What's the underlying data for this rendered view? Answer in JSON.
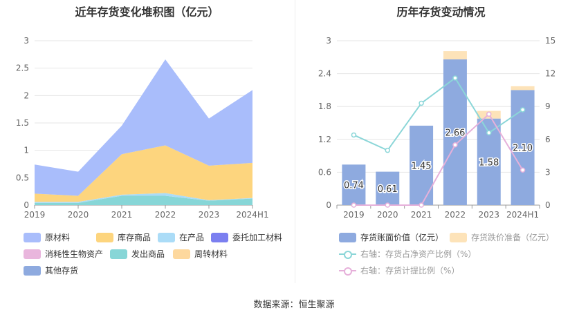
{
  "left_chart": {
    "title": "近年存货变化堆积图（亿元）"
  },
  "right_chart": {
    "title": "历年存货变动情况"
  },
  "footer": "数据来源：恒生聚源",
  "colors": {
    "raw": "#a9bdfb",
    "inventory_goods": "#fdd57e",
    "wip": "#abdcf7",
    "consign": "#7b7ff0",
    "bio": "#e9b6dd",
    "shipped": "#87d6d7",
    "revolving": "#fdd89e",
    "other": "#8eaadf",
    "book_value": "#8eaadf",
    "impairment": "#fde3b9",
    "ratio_line": "#8bd6d8",
    "provision_line": "#e6b0da"
  },
  "chart_data": [
    {
      "type": "area",
      "title": "近年存货变化堆积图（亿元）",
      "categories": [
        "2019",
        "2020",
        "2021",
        "2022",
        "2023",
        "2024H1"
      ],
      "ylim": [
        0,
        3
      ],
      "yticks": [
        "0",
        "0.5",
        "1",
        "1.5",
        "2",
        "2.5",
        "3"
      ],
      "stacked": true,
      "series": [
        {
          "name": "发出商品",
          "key": "shipped",
          "values": [
            0.04,
            0.04,
            0.17,
            0.17,
            0.08,
            0.12
          ]
        },
        {
          "name": "在产品",
          "key": "wip",
          "values": [
            0.02,
            0.02,
            0.02,
            0.05,
            0.01,
            0.01
          ]
        },
        {
          "name": "库存商品",
          "key": "inventory_goods",
          "values": [
            0.15,
            0.11,
            0.74,
            0.87,
            0.63,
            0.64
          ]
        },
        {
          "name": "原材料",
          "key": "raw",
          "values": [
            0.53,
            0.44,
            0.52,
            1.57,
            0.86,
            1.33
          ]
        }
      ],
      "legend": [
        {
          "name": "原材料",
          "key": "raw"
        },
        {
          "name": "库存商品",
          "key": "inventory_goods"
        },
        {
          "name": "在产品",
          "key": "wip"
        },
        {
          "name": "委托加工材料",
          "key": "consign"
        },
        {
          "name": "消耗性生物资产",
          "key": "bio"
        },
        {
          "name": "发出商品",
          "key": "shipped"
        },
        {
          "name": "周转材料",
          "key": "revolving"
        },
        {
          "name": "其他存货",
          "key": "other"
        }
      ]
    },
    {
      "type": "bar",
      "title": "历年存货变动情况",
      "categories": [
        "2019",
        "2020",
        "2021",
        "2022",
        "2023",
        "2024H1"
      ],
      "ylim": [
        0,
        3
      ],
      "yticks": [
        "0",
        "0.6",
        "1.2",
        "1.8",
        "2.4",
        "3"
      ],
      "y2lim": [
        0,
        15
      ],
      "y2ticks": [
        "0",
        "3",
        "6",
        "9",
        "12",
        "15"
      ],
      "series": [
        {
          "name": "存货账面价值（亿元）",
          "key": "book_value",
          "values": [
            0.74,
            0.61,
            1.45,
            2.66,
            1.58,
            2.1
          ],
          "labels": [
            "0.74",
            "0.61",
            "1.45",
            "2.66",
            "1.58",
            "2.10"
          ]
        },
        {
          "name": "存货跌价准备（亿元）",
          "key": "impairment",
          "values": [
            0,
            0,
            0,
            0.15,
            0.14,
            0.07
          ]
        },
        {
          "name": "右轴：存货占净资产比例（%）",
          "key": "ratio_line",
          "axis": "right",
          "values": [
            6.4,
            5.0,
            9.3,
            11.6,
            6.6,
            8.7
          ]
        },
        {
          "name": "右轴：存货计提比例（%）",
          "key": "provision_line",
          "axis": "right",
          "values": [
            0,
            0,
            0,
            5.5,
            8.3,
            3.2
          ]
        }
      ]
    }
  ]
}
